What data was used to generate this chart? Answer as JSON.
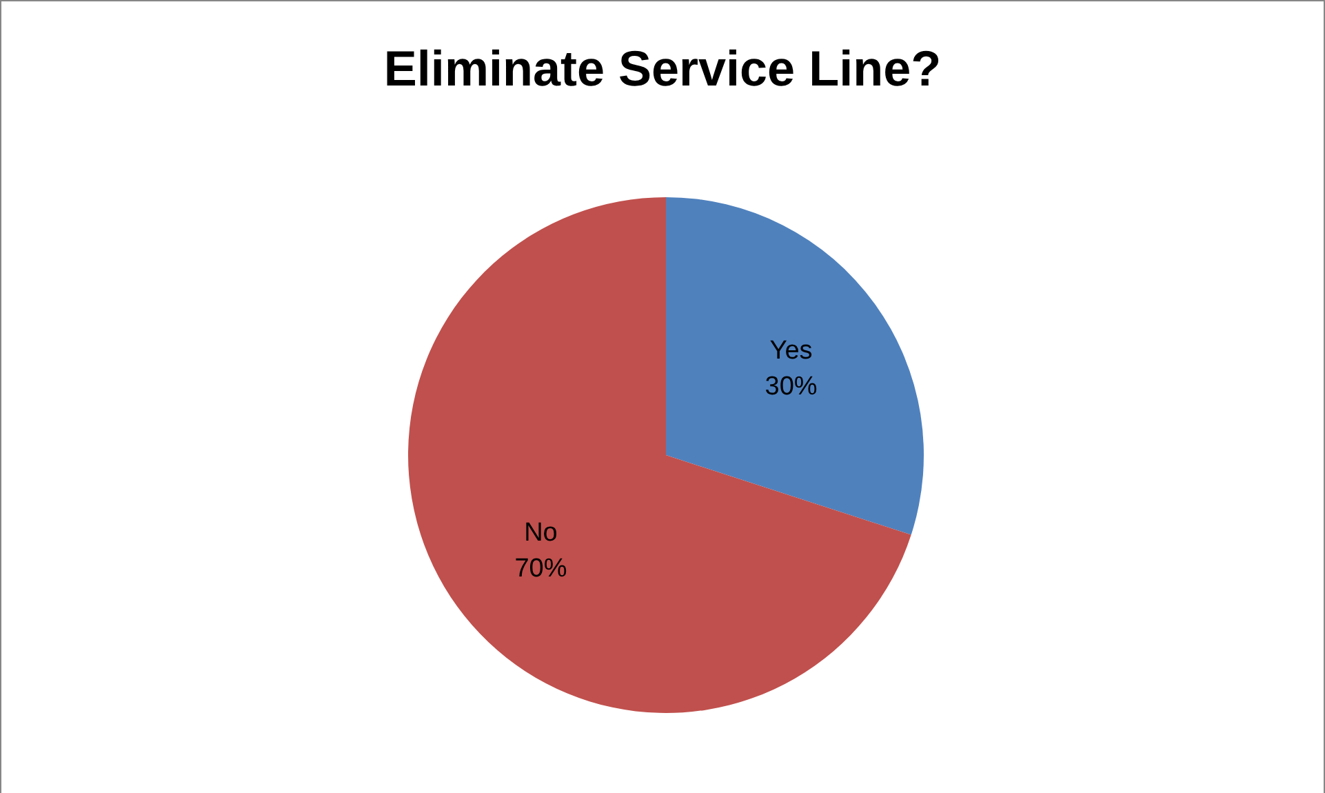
{
  "chart_data": {
    "type": "pie",
    "title": "Eliminate Service Line?",
    "categories": [
      "Yes",
      "No"
    ],
    "values": [
      30,
      70
    ],
    "colors": [
      "#4f81bd",
      "#c0504d"
    ],
    "value_labels": [
      "30%",
      "70%"
    ],
    "legend": false
  }
}
